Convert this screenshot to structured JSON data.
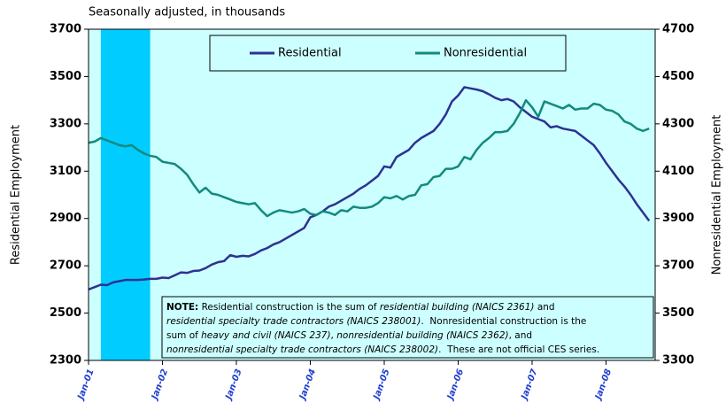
{
  "chart_data": {
    "type": "line",
    "subtitle": "Seasonally adjusted, in thousands",
    "y_label": "Residential Employment",
    "y2_label": "Nonresidential Employment",
    "categories": [
      "Jan-01",
      null,
      null,
      null,
      null,
      null,
      null,
      null,
      null,
      null,
      null,
      null,
      "Jan-02",
      null,
      null,
      null,
      null,
      null,
      null,
      null,
      null,
      null,
      null,
      null,
      "Jan-03",
      null,
      null,
      null,
      null,
      null,
      null,
      null,
      null,
      null,
      null,
      null,
      "Jan-04",
      null,
      null,
      null,
      null,
      null,
      null,
      null,
      null,
      null,
      null,
      null,
      "Jan-05",
      null,
      null,
      null,
      null,
      null,
      null,
      null,
      null,
      null,
      null,
      null,
      "Jan-06",
      null,
      null,
      null,
      null,
      null,
      null,
      null,
      null,
      null,
      null,
      null,
      "Jan-07",
      null,
      null,
      null,
      null,
      null,
      null,
      null,
      null,
      null,
      null,
      null,
      "Jan-08",
      null,
      null,
      null,
      null,
      null,
      null,
      null
    ],
    "shaded_range": [
      2,
      10
    ],
    "shade_color": "#00ccff",
    "background": "#ccffff",
    "series": [
      {
        "name": "Residential",
        "color": "#2e3192",
        "values": [
          2600,
          2610,
          2620,
          2618,
          2630,
          2635,
          2640,
          2640,
          2640,
          2642,
          2645,
          2645,
          2650,
          2648,
          2660,
          2672,
          2670,
          2678,
          2680,
          2690,
          2705,
          2715,
          2720,
          2745,
          2738,
          2742,
          2740,
          2750,
          2765,
          2775,
          2790,
          2800,
          2815,
          2830,
          2845,
          2860,
          2905,
          2915,
          2930,
          2950,
          2960,
          2975,
          2990,
          3005,
          3025,
          3040,
          3060,
          3080,
          3120,
          3115,
          3160,
          3175,
          3190,
          3220,
          3240,
          3255,
          3270,
          3300,
          3340,
          3395,
          3420,
          3455,
          3450,
          3445,
          3438,
          3425,
          3410,
          3400,
          3405,
          3395,
          3370,
          3350,
          3330,
          3320,
          3310,
          3285,
          3290,
          3280,
          3275,
          3270,
          3250,
          3230,
          3210,
          3175,
          3135,
          3100,
          3065,
          3035,
          3000,
          2960,
          2925,
          2890
        ]
      },
      {
        "name": "Nonresidential",
        "color": "#138a7e",
        "axis": "y2",
        "values": [
          4220,
          4225,
          4240,
          4230,
          4220,
          4210,
          4205,
          4210,
          4190,
          4175,
          4165,
          4160,
          4140,
          4135,
          4130,
          4110,
          4085,
          4045,
          4010,
          4030,
          4005,
          4000,
          3990,
          3980,
          3970,
          3965,
          3960,
          3965,
          3935,
          3910,
          3925,
          3935,
          3930,
          3925,
          3930,
          3940,
          3920,
          3915,
          3930,
          3925,
          3915,
          3935,
          3930,
          3950,
          3945,
          3945,
          3950,
          3965,
          3990,
          3985,
          3995,
          3980,
          3995,
          4000,
          4040,
          4045,
          4075,
          4080,
          4110,
          4110,
          4120,
          4160,
          4150,
          4190,
          4220,
          4240,
          4265,
          4265,
          4270,
          4300,
          4345,
          4400,
          4370,
          4330,
          4395,
          4385,
          4375,
          4365,
          4380,
          4360,
          4365,
          4365,
          4385,
          4380,
          4360,
          4355,
          4340,
          4310,
          4300,
          4280,
          4270,
          4280
        ]
      }
    ],
    "ylim": [
      2300,
      3700
    ],
    "yticks": [
      2300,
      2500,
      2700,
      2900,
      3100,
      3300,
      3500,
      3700
    ],
    "y2lim": [
      3300,
      4700
    ],
    "y2ticks": [
      3300,
      3500,
      3700,
      3900,
      4100,
      4300,
      4500,
      4700
    ],
    "note": [
      [
        {
          "text": "NOTE:",
          "style": "bold"
        },
        {
          "text": " Residential construction is the sum of ",
          "style": "normal"
        },
        {
          "text": "residential building (NAICS 2361)",
          "style": "italic"
        },
        {
          "text": " and",
          "style": "normal"
        }
      ],
      [
        {
          "text": "residential specialty trade contractors (NAICS 238001)",
          "style": "italic"
        },
        {
          "text": ".  Nonresidential construction is the",
          "style": "normal"
        }
      ],
      [
        {
          "text": "sum of ",
          "style": "normal"
        },
        {
          "text": "heavy and civil (NAICS 237)",
          "style": "italic"
        },
        {
          "text": ", ",
          "style": "normal"
        },
        {
          "text": "nonresidential building (NAICS 2362)",
          "style": "italic"
        },
        {
          "text": ", and",
          "style": "normal"
        }
      ],
      [
        {
          "text": "nonresidential specialty trade contractors (NAICS 238002)",
          "style": "italic"
        },
        {
          "text": ".  These are not official CES series.",
          "style": "normal"
        }
      ]
    ]
  }
}
